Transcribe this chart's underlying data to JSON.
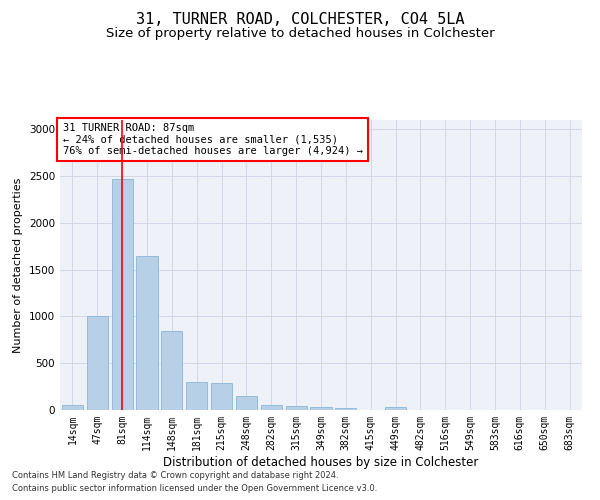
{
  "title": "31, TURNER ROAD, COLCHESTER, CO4 5LA",
  "subtitle": "Size of property relative to detached houses in Colchester",
  "xlabel": "Distribution of detached houses by size in Colchester",
  "ylabel": "Number of detached properties",
  "footnote1": "Contains HM Land Registry data © Crown copyright and database right 2024.",
  "footnote2": "Contains public sector information licensed under the Open Government Licence v3.0.",
  "bar_labels": [
    "14sqm",
    "47sqm",
    "81sqm",
    "114sqm",
    "148sqm",
    "181sqm",
    "215sqm",
    "248sqm",
    "282sqm",
    "315sqm",
    "349sqm",
    "382sqm",
    "415sqm",
    "449sqm",
    "482sqm",
    "516sqm",
    "549sqm",
    "583sqm",
    "616sqm",
    "650sqm",
    "683sqm"
  ],
  "bar_values": [
    50,
    1000,
    2470,
    1650,
    840,
    300,
    290,
    150,
    55,
    45,
    30,
    20,
    0,
    30,
    0,
    0,
    0,
    0,
    0,
    0,
    0
  ],
  "bar_color": "#b8cfe8",
  "bar_edge_color": "#7aafd4",
  "vline_x": 2,
  "vline_color": "red",
  "annotation_text": "31 TURNER ROAD: 87sqm\n← 24% of detached houses are smaller (1,535)\n76% of semi-detached houses are larger (4,924) →",
  "annotation_box_color": "white",
  "annotation_edge_color": "red",
  "ylim": [
    0,
    3100
  ],
  "grid_color": "#d0d8e8",
  "bg_color": "#eef2f8",
  "title_fontsize": 11,
  "subtitle_fontsize": 9.5,
  "ylabel_fontsize": 8,
  "xlabel_fontsize": 8.5,
  "tick_fontsize": 7,
  "annot_fontsize": 7.5,
  "footnote_fontsize": 6
}
